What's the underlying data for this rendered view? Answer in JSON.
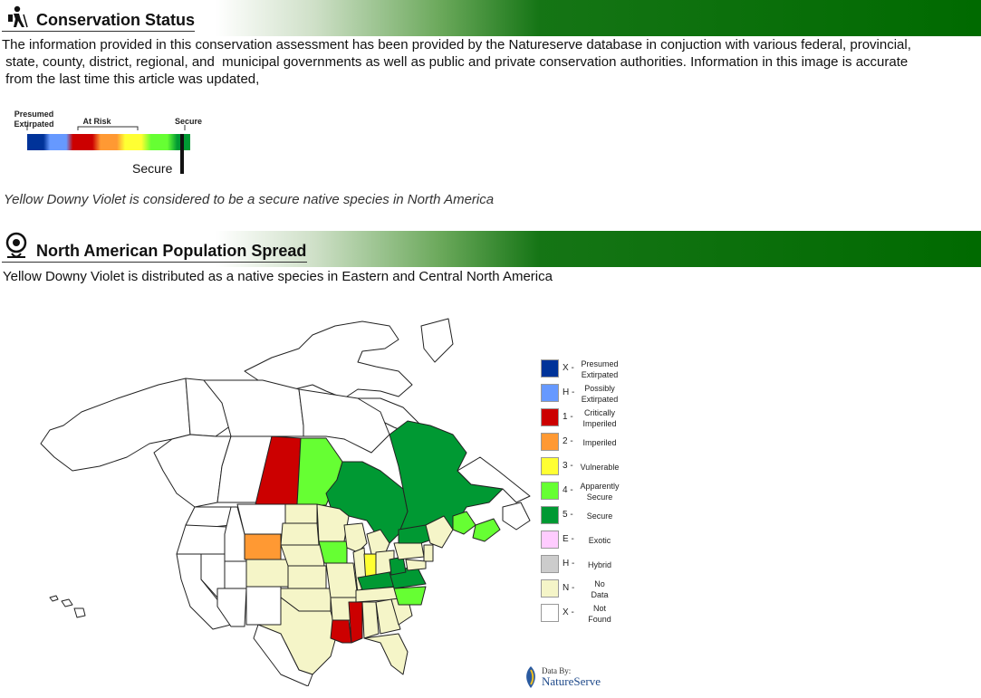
{
  "conservation": {
    "title": "Conservation Status",
    "paragraph_line1": "The information provided in this conservation assessment has been provided by the Natureserve database in conjuction with various federal, provincial,",
    "paragraph_line2": " state, county, district, regional, and  municipal governments as well as public and private conservation authorities. Information in this image is accurate",
    "paragraph_line3": " from the last time this article was updated,",
    "scale": {
      "label_presumed": "Presumed",
      "label_extirpated": "Extirpated",
      "label_at_risk": "At Risk",
      "label_secure": "Secure",
      "marker_label": "Secure",
      "marker_position": 0.95
    },
    "statement": "Yellow Downy Violet is considered to be a secure native species in North America"
  },
  "population": {
    "title": "North American Population Spread",
    "paragraph": "Yellow Downy Violet is distributed as a native species in Eastern and Central North America"
  },
  "legend": [
    {
      "code": "X -",
      "label_line1": "Presumed",
      "label_line2": "Extirpated",
      "color": "#003399"
    },
    {
      "code": "H -",
      "label_line1": "Possibly",
      "label_line2": "Extirpated",
      "color": "#6699ff"
    },
    {
      "code": "1 -",
      "label_line1": "Critically",
      "label_line2": "Imperiled",
      "color": "#cc0000"
    },
    {
      "code": "2 -",
      "label_line1": "Imperiled",
      "label_line2": "",
      "color": "#ff9933"
    },
    {
      "code": "3 -",
      "label_line1": "Vulnerable",
      "label_line2": "",
      "color": "#ffff33"
    },
    {
      "code": "4 -",
      "label_line1": "Apparently",
      "label_line2": "Secure",
      "color": "#66ff33"
    },
    {
      "code": "5 -",
      "label_line1": "Secure",
      "label_line2": "",
      "color": "#009933"
    },
    {
      "code": "E -",
      "label_line1": "Exotic",
      "label_line2": "",
      "color": "#ffccff"
    },
    {
      "code": "H -",
      "label_line1": "Hybrid",
      "label_line2": "",
      "color": "#cccccc"
    },
    {
      "code": "N -",
      "label_line1": "No",
      "label_line2": "Data",
      "color": "#f5f5c8"
    },
    {
      "code": "X -",
      "label_line1": "Not",
      "label_line2": "Found",
      "color": "#ffffff"
    }
  ],
  "logo": {
    "line1": "Data By:",
    "line2": "NatureServe"
  },
  "colors": {
    "bar_green": "#006a00",
    "secure": "#009933",
    "apparently_secure": "#66ff33",
    "critically_imperiled": "#cc0000",
    "imperiled": "#ff9933",
    "vulnerable": "#ffff33",
    "no_data": "#f5f5c8"
  }
}
